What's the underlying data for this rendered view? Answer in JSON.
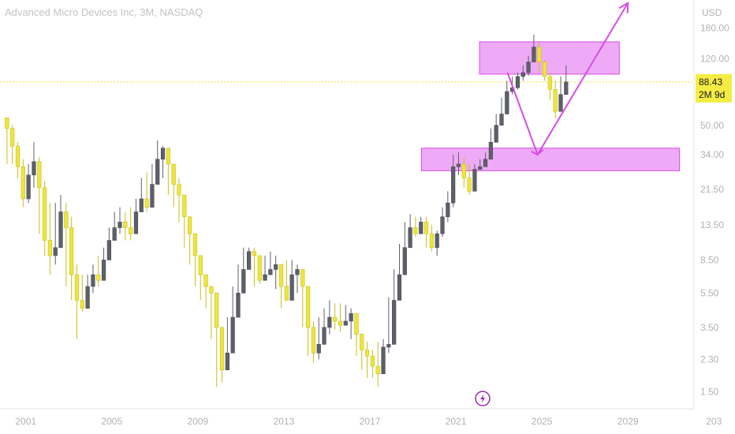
{
  "chart_data": {
    "type": "candlestick",
    "title": "Advanced Micro Devices Inc, 3M, NASDAQ",
    "currency": "USD",
    "y_scale": "log",
    "ylim": [
      1.2,
      260
    ],
    "xlim": [
      1999.8,
      2032.0
    ],
    "x_ticks": [
      "2001",
      "2005",
      "2009",
      "2013",
      "2017",
      "2021",
      "2025",
      "2029",
      "203"
    ],
    "x_tick_positions": [
      2001,
      2005,
      2009,
      2013,
      2017,
      2021,
      2025,
      2029,
      2033
    ],
    "y_ticks": [
      "180.00",
      "120.00",
      "50.00",
      "34.00",
      "21.50",
      "13.50",
      "8.50",
      "5.50",
      "3.50",
      "2.30",
      "1.50"
    ],
    "y_tick_values": [
      180,
      120,
      50,
      34,
      21.5,
      13.5,
      8.5,
      5.5,
      3.5,
      2.3,
      1.5
    ],
    "last_price": {
      "value": 88.43,
      "label": "88.43",
      "countdown": "2M 9d"
    },
    "colors": {
      "up": "#5d606b",
      "down": "#f0e53c",
      "zone": "#e88ef4",
      "projection": "#d84ce6",
      "price_line": "#f0e53c"
    },
    "zones": [
      {
        "x1": 2022.1,
        "x2": 2028.6,
        "y_top": 150,
        "y_bottom": 98
      },
      {
        "x1": 2019.4,
        "x2": 2031.4,
        "y_top": 37,
        "y_bottom": 27.5
      }
    ],
    "projection": [
      {
        "x": 2023.4,
        "y": 100
      },
      {
        "x": 2024.8,
        "y": 34
      },
      {
        "x": 2029.0,
        "y": 250
      }
    ],
    "quarters_start": 2000.0,
    "closes": [
      48,
      38,
      29,
      19,
      26,
      31,
      22,
      11,
      9,
      10,
      16,
      13,
      7,
      5,
      4.5,
      6,
      7,
      6.5,
      8.5,
      11,
      13,
      14,
      13,
      12,
      16,
      19,
      17,
      23,
      32,
      37,
      30,
      23,
      20,
      15,
      12,
      9,
      7,
      6,
      5.5,
      3.5,
      2,
      2.5,
      4,
      5.5,
      7.5,
      9.5,
      9,
      6.5,
      7,
      7.5,
      8,
      6,
      5,
      7,
      7.5,
      6,
      3.5,
      2.5,
      2.8,
      3.5,
      4,
      3.8,
      3.6,
      3.8,
      4.2,
      3.2,
      2.6,
      2.4,
      2.1,
      1.9,
      2.7,
      2.8,
      5,
      7,
      10,
      13,
      12,
      14,
      12,
      10,
      12,
      15,
      18,
      29,
      30,
      25,
      21,
      28,
      29,
      32,
      40,
      50,
      58,
      78,
      82,
      95,
      100,
      115,
      140,
      115,
      95,
      80,
      60,
      75,
      88.43
    ],
    "extremes": [
      [
        52,
        30
      ],
      [
        50,
        30
      ],
      [
        40,
        25
      ],
      [
        32,
        17
      ],
      [
        30,
        18
      ],
      [
        40,
        22
      ],
      [
        33,
        12
      ],
      [
        24,
        9
      ],
      [
        18,
        7
      ],
      [
        18,
        8
      ],
      [
        20,
        11
      ],
      [
        18,
        6
      ],
      [
        15,
        5
      ],
      [
        8,
        3
      ],
      [
        7,
        4.3
      ],
      [
        7,
        4.5
      ],
      [
        8,
        5.5
      ],
      [
        9,
        6
      ],
      [
        10,
        7
      ],
      [
        13,
        9
      ],
      [
        16,
        11
      ],
      [
        17,
        12
      ],
      [
        16,
        11
      ],
      [
        17,
        11
      ],
      [
        19,
        15
      ],
      [
        25,
        16
      ],
      [
        27,
        16
      ],
      [
        30,
        22
      ],
      [
        41,
        28
      ],
      [
        38,
        25
      ],
      [
        31,
        20
      ],
      [
        26,
        17
      ],
      [
        25,
        14
      ],
      [
        16,
        10
      ],
      [
        14,
        8
      ],
      [
        10,
        6
      ],
      [
        8,
        5
      ],
      [
        7,
        4.5
      ],
      [
        6,
        3
      ],
      [
        4,
        1.6
      ],
      [
        2.8,
        1.7
      ],
      [
        4,
        2.3
      ],
      [
        6,
        3.5
      ],
      [
        8,
        5
      ],
      [
        10,
        7
      ],
      [
        10,
        8
      ],
      [
        10,
        6
      ],
      [
        9,
        6.2
      ],
      [
        9,
        6.5
      ],
      [
        9.5,
        7
      ],
      [
        9,
        5.8
      ],
      [
        8,
        4.5
      ],
      [
        8.5,
        5
      ],
      [
        8.5,
        6.5
      ],
      [
        8,
        5.5
      ],
      [
        7,
        3.5
      ],
      [
        4,
        2.4
      ],
      [
        3.8,
        2.2
      ],
      [
        4,
        2.3
      ],
      [
        4.5,
        3.3
      ],
      [
        5,
        3.2
      ],
      [
        4.8,
        3.4
      ],
      [
        4.8,
        3.3
      ],
      [
        4.7,
        3.6
      ],
      [
        4.5,
        3
      ],
      [
        3.6,
        2.4
      ],
      [
        3,
        2
      ],
      [
        2.9,
        1.8
      ],
      [
        2.6,
        1.8
      ],
      [
        2.9,
        1.6
      ],
      [
        3,
        2.3
      ],
      [
        5.2,
        2.5
      ],
      [
        7.5,
        4.8
      ],
      [
        10.5,
        6.8
      ],
      [
        14,
        9.5
      ],
      [
        15.5,
        11
      ],
      [
        15,
        11.5
      ],
      [
        15,
        12
      ],
      [
        15,
        10
      ],
      [
        13.5,
        9.5
      ],
      [
        12.5,
        9
      ],
      [
        17,
        11.5
      ],
      [
        21,
        14
      ],
      [
        34,
        17
      ],
      [
        35,
        26
      ],
      [
        33,
        22
      ],
      [
        30,
        20
      ],
      [
        30,
        26
      ],
      [
        32,
        28
      ],
      [
        35,
        30
      ],
      [
        48,
        35
      ],
      [
        58,
        45
      ],
      [
        72,
        55
      ],
      [
        90,
        72
      ],
      [
        95,
        75
      ],
      [
        100,
        80
      ],
      [
        110,
        90
      ],
      [
        125,
        96
      ],
      [
        165,
        115
      ],
      [
        150,
        100
      ],
      [
        118,
        90
      ],
      [
        100,
        70
      ],
      [
        90,
        55
      ],
      [
        95,
        60
      ],
      [
        110,
        82
      ]
    ]
  }
}
